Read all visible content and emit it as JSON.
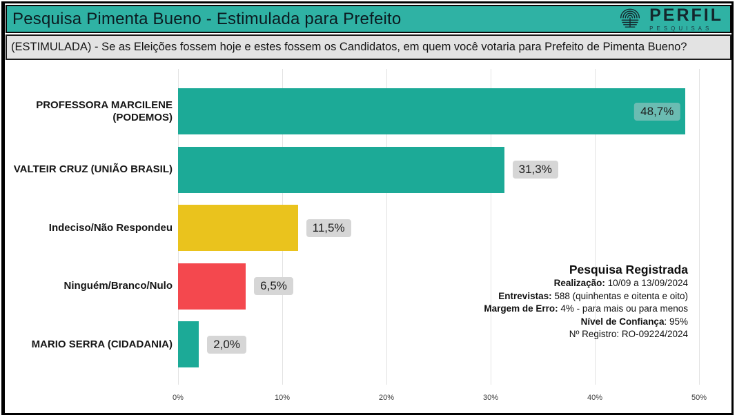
{
  "page": {
    "title": "Pesquisa Pimenta Bueno - Estimulada para Prefeito",
    "subtitle": "(ESTIMULADA) - Se as Eleições fossem hoje e estes fossem os Candidatos, em quem você votaria para Prefeito de Pimenta Bueno?"
  },
  "brand": {
    "name": "PERFIL",
    "tagline": "PESQUISAS",
    "icon": "fingerprint-icon"
  },
  "chart_data": {
    "type": "bar",
    "orientation": "horizontal",
    "title": "Pesquisa Pimenta Bueno - Estimulada para Prefeito",
    "categories": [
      "PROFESSORA MARCILENE (PODEMOS)",
      "VALTEIR CRUZ (UNIÃO BRASIL)",
      "Indeciso/Não Respondeu",
      "Ninguém/Branco/Nulo",
      "MARIO SERRA (CIDADANIA)"
    ],
    "values": [
      48.7,
      31.3,
      11.5,
      6.5,
      2.0
    ],
    "value_labels": [
      "48,7%",
      "31,3%",
      "11,5%",
      "6,5%",
      "2,0%"
    ],
    "bar_colors": [
      "#1caa97",
      "#1caa97",
      "#eac31d",
      "#f4484e",
      "#1caa97"
    ],
    "xlim": [
      0,
      50
    ],
    "x_ticks": [
      "0%",
      "10%",
      "20%",
      "30%",
      "40%",
      "50%"
    ],
    "grid": true,
    "legend": false
  },
  "info": {
    "title": "Pesquisa Registrada",
    "lines": [
      {
        "bold": "Realização:",
        "rest": " 10/09 a 13/09/2024"
      },
      {
        "bold": "Entrevistas:",
        "rest": " 588 (quinhentas e oitenta e oito)"
      },
      {
        "bold": "Margem de Erro:",
        "rest": " 4% - para mais ou para menos"
      },
      {
        "bold": "Nível de Confiança",
        "rest": ": 95%"
      },
      {
        "bold": "",
        "rest": "Nº Registro: RO-09224/2024"
      }
    ]
  },
  "colors": {
    "header_bg": "#2fb2a4",
    "subtitle_bg": "#e3e3e3",
    "teal_bar": "#1caa97",
    "yellow_bar": "#eac31d",
    "red_bar": "#f4484e",
    "badge_bg": "#d6d6d6",
    "border": "#000000"
  }
}
